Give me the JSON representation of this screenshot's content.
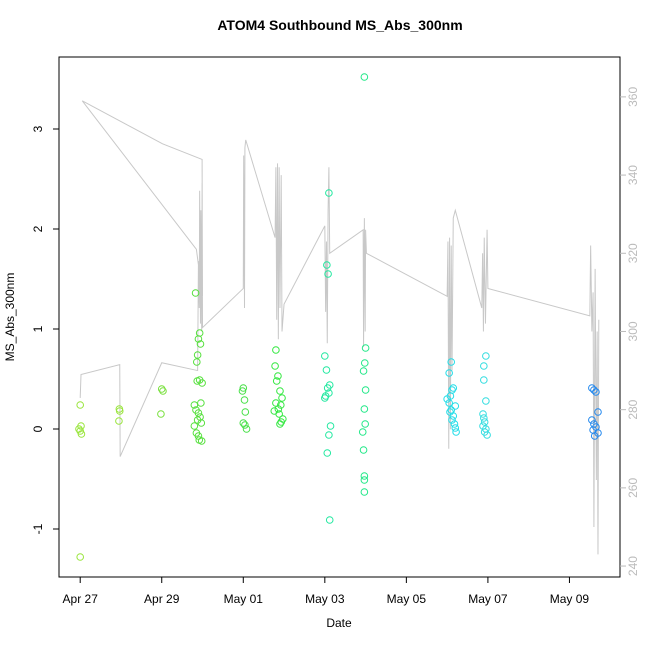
{
  "chart_data": {
    "type": "scatter",
    "title": "ATOM4 Southbound MS_Abs_300nm",
    "x_label": "Date",
    "y_label": "MS_Abs_300nm",
    "xlim": [
      -0.52,
      13.24
    ],
    "xticks": [
      {
        "value": 0,
        "label": "Apr 27"
      },
      {
        "value": 2,
        "label": "Apr 29"
      },
      {
        "value": 4,
        "label": "May 01"
      },
      {
        "value": 6,
        "label": "May 03"
      },
      {
        "value": 8,
        "label": "May 05"
      },
      {
        "value": 10,
        "label": "May 07"
      },
      {
        "value": 12,
        "label": "May 09"
      }
    ],
    "ylim": [
      -1.48,
      3.72
    ],
    "yticks": [
      -1,
      0,
      1,
      2,
      3
    ],
    "y2lim": [
      237.2,
      370.2
    ],
    "y2ticks": [
      240,
      260,
      280,
      300,
      320,
      340,
      360
    ],
    "y2_color": "#bbbbbb",
    "series": [
      {
        "type": "line",
        "axis": "y2",
        "color": "#c8c8c8",
        "x": [
          0.0,
          0.02,
          0.97,
          0.98,
          2.0,
          2.88,
          2.9,
          2.92,
          2.93,
          2.95,
          2.96,
          2.98,
          2.99,
          3.0,
          2.85,
          0.05,
          2.02,
          2.99,
          3.0,
          4.0,
          4.01,
          4.03,
          4.04,
          4.06,
          4.78,
          4.8,
          4.82,
          4.84,
          4.86,
          4.88,
          4.9,
          4.93,
          4.95,
          5.0,
          6.0,
          6.02,
          6.04,
          6.06,
          6.08,
          6.1,
          6.12,
          6.94,
          6.95,
          6.97,
          6.99,
          7.0,
          7.02,
          9.0,
          9.02,
          9.04,
          9.06,
          9.08,
          9.1,
          9.12,
          9.15,
          9.2,
          9.85,
          9.87,
          9.89,
          9.91,
          9.94,
          9.98,
          10.0,
          12.5,
          12.52,
          12.55,
          12.58,
          12.6,
          12.63,
          12.66,
          12.68,
          12.7,
          12.72
        ],
        "values": [
          283,
          289,
          291.5,
          268,
          292,
          290,
          318,
          306,
          336,
          302,
          331,
          300,
          338,
          309,
          321,
          359,
          348,
          344,
          301,
          311,
          345,
          306,
          347,
          349,
          324,
          342,
          303,
          343,
          298,
          342,
          306,
          340,
          300,
          307,
          327,
          305,
          323,
          297,
          331,
          342,
          320,
          326,
          296,
          329,
          300,
          326,
          320,
          309,
          323,
          270,
          324,
          275,
          322,
          290,
          329,
          331,
          306,
          320,
          300,
          324,
          302,
          326,
          311,
          304,
          322,
          300,
          310,
          250,
          316,
          262,
          300,
          243,
          303
        ]
      },
      {
        "color": "#99e53c",
        "x": [
          0.0,
          0.02,
          -0.03,
          0.0,
          0.03,
          0.0
        ],
        "values": [
          0.24,
          0.03,
          0.0,
          -0.02,
          -0.05,
          -1.28
        ]
      },
      {
        "color": "#99e53c",
        "x": [
          0.96,
          0.97,
          0.95
        ],
        "values": [
          0.2,
          0.18,
          0.08
        ]
      },
      {
        "color": "#78e03c",
        "x": [
          2.0,
          2.03,
          1.98
        ],
        "values": [
          0.4,
          0.38,
          0.15
        ]
      },
      {
        "color": "#55e03c",
        "x": [
          2.83,
          2.9,
          2.95,
          2.93,
          2.88,
          2.86,
          2.87,
          2.99,
          2.93,
          2.96,
          2.8,
          2.84,
          2.9,
          2.94,
          2.88,
          2.97,
          2.8,
          2.85,
          2.9,
          2.92,
          2.98
        ],
        "values": [
          1.36,
          0.9,
          0.85,
          0.96,
          0.74,
          0.67,
          0.48,
          0.46,
          0.49,
          0.26,
          0.24,
          0.19,
          0.16,
          0.12,
          0.09,
          0.06,
          0.03,
          -0.04,
          -0.07,
          -0.11,
          -0.12
        ]
      },
      {
        "color": "#48e048",
        "x": [
          4.0,
          3.98,
          4.03,
          4.05,
          4.0,
          4.04,
          4.08
        ],
        "values": [
          0.41,
          0.38,
          0.29,
          0.17,
          0.06,
          0.04,
          0.0
        ]
      },
      {
        "color": "#33e840",
        "x": [
          4.8,
          4.78,
          4.85,
          4.82,
          4.9,
          4.95,
          4.8,
          4.92,
          4.86,
          4.76,
          4.88,
          4.97,
          4.93,
          4.9
        ],
        "values": [
          0.79,
          0.63,
          0.53,
          0.48,
          0.38,
          0.31,
          0.26,
          0.24,
          0.2,
          0.18,
          0.15,
          0.1,
          0.07,
          0.05
        ]
      },
      {
        "color": "#22e8a0",
        "x": [
          6.1,
          6.05,
          6.08,
          6.0,
          6.04,
          6.12,
          6.07,
          6.1,
          6.02,
          6.0,
          6.14,
          6.1,
          6.06,
          6.12
        ],
        "values": [
          2.36,
          1.64,
          1.55,
          0.73,
          0.59,
          0.44,
          0.41,
          0.36,
          0.33,
          0.31,
          0.03,
          -0.06,
          -0.24,
          -0.91
        ]
      },
      {
        "color": "#22e888",
        "x": [
          6.97,
          7.0,
          6.98,
          6.95,
          7.0,
          6.97,
          6.99,
          6.93,
          6.95,
          6.97,
          6.97,
          6.97
        ],
        "values": [
          3.52,
          0.81,
          0.66,
          0.58,
          0.39,
          0.2,
          0.05,
          -0.03,
          -0.21,
          -0.47,
          -0.51,
          -0.63
        ]
      },
      {
        "color": "#22dde8",
        "x": [
          9.1,
          9.05,
          9.15,
          9.12,
          9.08,
          9.0,
          9.05,
          9.2,
          9.1,
          9.07,
          9.15,
          9.12,
          9.18,
          9.2,
          9.22
        ],
        "values": [
          0.67,
          0.56,
          0.41,
          0.39,
          0.33,
          0.3,
          0.26,
          0.23,
          0.19,
          0.17,
          0.13,
          0.09,
          0.05,
          0.01,
          -0.03
        ]
      },
      {
        "color": "#33dde0",
        "x": [
          9.95,
          9.9,
          9.9,
          9.95,
          9.88,
          9.9,
          9.92,
          9.88,
          9.95,
          9.92,
          9.98
        ],
        "values": [
          0.73,
          0.63,
          0.49,
          0.28,
          0.15,
          0.11,
          0.07,
          0.03,
          0.0,
          -0.03,
          -0.06
        ]
      },
      {
        "color": "#2288ee",
        "x": [
          12.55,
          12.6,
          12.65,
          12.7,
          12.55,
          12.6,
          12.65,
          12.58,
          12.7,
          12.62
        ],
        "values": [
          0.41,
          0.39,
          0.37,
          0.17,
          0.09,
          0.05,
          0.02,
          -0.01,
          -0.04,
          -0.07
        ]
      }
    ]
  }
}
